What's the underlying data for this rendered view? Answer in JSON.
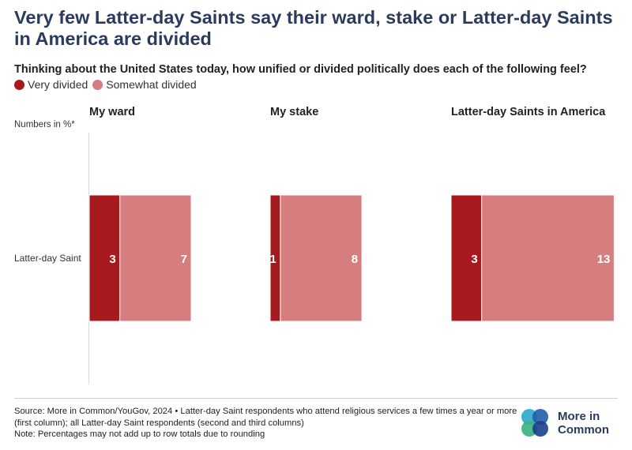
{
  "title": "Very few Latter-day Saints say their ward, stake or Latter-day Saints in America are divided",
  "subtitle": "Thinking about the United States today, how unified or divided politically does each of the following feel?",
  "legend": [
    {
      "label": "Very divided",
      "color": "#a8191d"
    },
    {
      "label": "Somewhat divided",
      "color": "#d67e7f"
    }
  ],
  "units_note": "Numbers in %*",
  "chart_data": {
    "type": "bar",
    "orientation": "horizontal",
    "stacked": true,
    "row_label": "Latter-day Saint",
    "panels": [
      {
        "title": "My ward",
        "series": [
          {
            "name": "Very divided",
            "values": [
              3
            ]
          },
          {
            "name": "Somewhat divided",
            "values": [
              7
            ]
          }
        ]
      },
      {
        "title": "My stake",
        "series": [
          {
            "name": "Very divided",
            "values": [
              1
            ]
          },
          {
            "name": "Somewhat divided",
            "values": [
              8
            ]
          }
        ]
      },
      {
        "title": "Latter-day Saints in America",
        "series": [
          {
            "name": "Very divided",
            "values": [
              3
            ]
          },
          {
            "name": "Somewhat divided",
            "values": [
              13
            ]
          }
        ]
      }
    ]
  },
  "footer": {
    "source": "Source: More in Common/YouGov, 2024 • Latter-day Saint respondents who attend religious services a few times a year or more (first column); all Latter-day Saint respondents (second and third columns)",
    "note": "Note: Percentages may not add up to row totals due to rounding"
  },
  "logo": {
    "line1": "More in",
    "line2": "Common"
  }
}
